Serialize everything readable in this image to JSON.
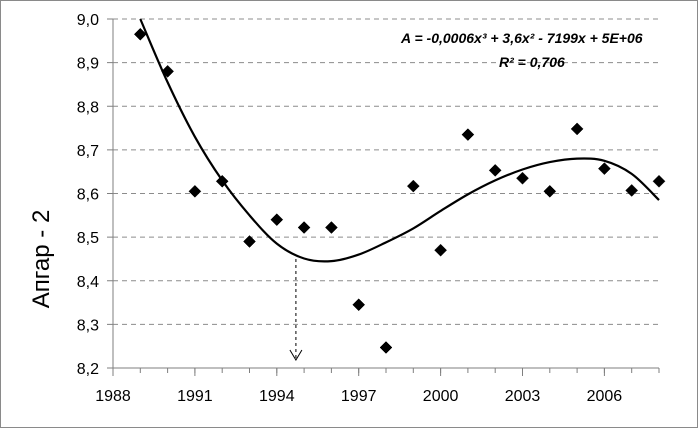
{
  "chart_data": {
    "type": "scatter",
    "ylabel": "Апгар - 2",
    "xlabel": "",
    "title": "",
    "xlim": [
      1988,
      2008
    ],
    "ylim": [
      8.2,
      9.0
    ],
    "x_ticks": [
      "1988",
      "1991",
      "1994",
      "1997",
      "2000",
      "2003",
      "2006"
    ],
    "y_ticks": [
      "8,2",
      "8,3",
      "8,4",
      "8,5",
      "8,6",
      "8,7",
      "8,8",
      "8,9",
      "9,0"
    ],
    "grid": "horizontal dashed",
    "points": [
      {
        "x": 1989,
        "y": 8.965
      },
      {
        "x": 1990,
        "y": 8.88
      },
      {
        "x": 1991,
        "y": 8.605
      },
      {
        "x": 1992,
        "y": 8.628
      },
      {
        "x": 1993,
        "y": 8.49
      },
      {
        "x": 1994,
        "y": 8.54
      },
      {
        "x": 1995,
        "y": 8.522
      },
      {
        "x": 1996,
        "y": 8.522
      },
      {
        "x": 1997,
        "y": 8.345
      },
      {
        "x": 1998,
        "y": 8.247
      },
      {
        "x": 1999,
        "y": 8.617
      },
      {
        "x": 2000,
        "y": 8.47
      },
      {
        "x": 2001,
        "y": 8.735
      },
      {
        "x": 2002,
        "y": 8.653
      },
      {
        "x": 2003,
        "y": 8.635
      },
      {
        "x": 2004,
        "y": 8.605
      },
      {
        "x": 2005,
        "y": 8.748
      },
      {
        "x": 2006,
        "y": 8.657
      },
      {
        "x": 2007,
        "y": 8.607
      },
      {
        "x": 2008,
        "y": 8.628
      }
    ],
    "trendline": {
      "type": "polynomial-3",
      "equation_text": "A = -0,0006x³ + 3,6x² - 7199x + 5E+06",
      "r2_text": "R² = 0,706",
      "points": [
        {
          "x": 1989,
          "y": 9.0
        },
        {
          "x": 1990,
          "y": 8.855
        },
        {
          "x": 1991,
          "y": 8.73
        },
        {
          "x": 1992,
          "y": 8.63
        },
        {
          "x": 1993,
          "y": 8.55
        },
        {
          "x": 1994,
          "y": 8.485
        },
        {
          "x": 1995,
          "y": 8.451
        },
        {
          "x": 1996,
          "y": 8.445
        },
        {
          "x": 1997,
          "y": 8.46
        },
        {
          "x": 1998,
          "y": 8.488
        },
        {
          "x": 1999,
          "y": 8.52
        },
        {
          "x": 2000,
          "y": 8.56
        },
        {
          "x": 2001,
          "y": 8.598
        },
        {
          "x": 2002,
          "y": 8.63
        },
        {
          "x": 2003,
          "y": 8.655
        },
        {
          "x": 2004,
          "y": 8.672
        },
        {
          "x": 2005,
          "y": 8.68
        },
        {
          "x": 2006,
          "y": 8.675
        },
        {
          "x": 2007,
          "y": 8.645
        },
        {
          "x": 2008,
          "y": 8.585
        }
      ]
    },
    "minimum_marker": {
      "x": 1994.7,
      "from_y": 8.45,
      "to_y": 8.2
    }
  }
}
